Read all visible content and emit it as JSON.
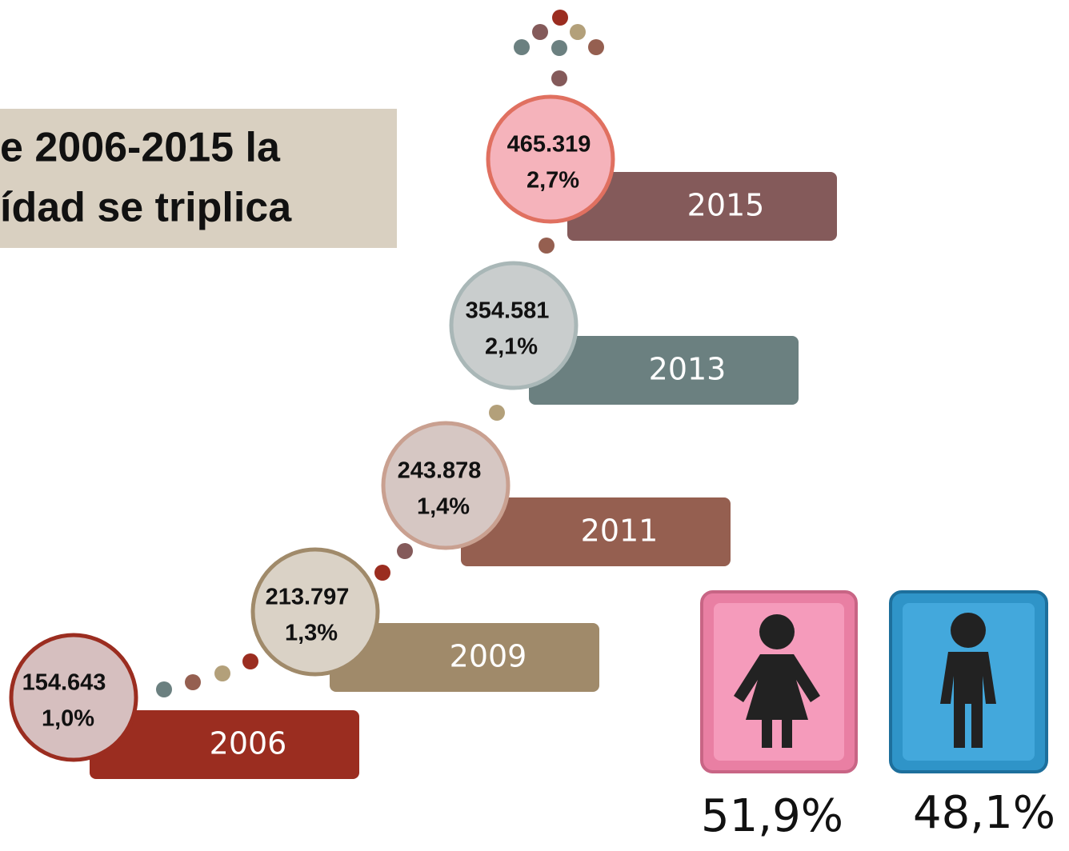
{
  "header": {
    "title_lines": [
      "e 2006-2015 la",
      "ídad se triplica"
    ]
  },
  "steps": [
    {
      "year": "2006",
      "count": "154.643",
      "share": "1,0%"
    },
    {
      "year": "2009",
      "count": "213.797",
      "share": "1,3%"
    },
    {
      "year": "2011",
      "count": "243.878",
      "share": "1,4%"
    },
    {
      "year": "2013",
      "count": "354.581",
      "share": "2,1%"
    },
    {
      "year": "2015",
      "count": "465.319",
      "share": "2,7%"
    }
  ],
  "gender": {
    "female": "51,9%",
    "male": "48,1%"
  }
}
